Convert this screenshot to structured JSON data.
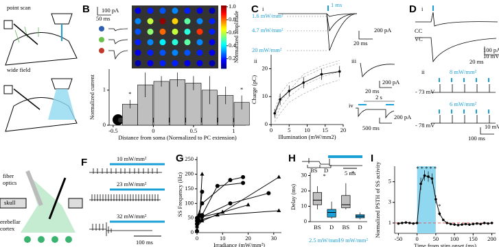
{
  "panels": {
    "A": {
      "point_scan": "point scan",
      "wide_field": "wide field",
      "fiber": "fiber",
      "optics": "optics",
      "skull": "skull",
      "cerebellar": "erebellar",
      "cortex": "cortex"
    },
    "B": {
      "label": "B",
      "scale_current": "100 pA",
      "scale_time": "50 ms",
      "colorbar_label": "Normalized amplitude"
    },
    "C": {
      "label": "C",
      "i": "i",
      "ii": "ii",
      "iii": "iii",
      "iv": "iv",
      "pulse": "1 ms",
      "irr_low": "1.6 mW/mm²",
      "irr_mid": "4.7 mW/mm²",
      "irr_high": "20 mW/mm²",
      "i_current": "200 pA",
      "i_time": "20 ms",
      "iii_current": "200 pA",
      "iii_time": "20 ms",
      "iv_train": "2 s",
      "iv_current": "200 pA",
      "iv_time": "500 ms"
    },
    "D": {
      "label": "D",
      "i": "i",
      "ii": "ii",
      "cc": "CC",
      "vc": "VC",
      "current": "100 pA",
      "voltage": "10 mV",
      "time": "20 ms",
      "irr_top": "8 mW/mm²",
      "vm_top": "- 73 mV",
      "irr_bottom": "6 mW/mm²",
      "vm_bottom": "- 78 mV",
      "ii_voltage": "10 mV",
      "ii_time": "100 ms"
    },
    "F": {
      "label": "F",
      "irr_1": "10 mW/mm²",
      "irr_2": "23 mW/mm²",
      "irr_3": "32 mW/mm²",
      "time": "100 ms"
    },
    "G": {
      "label": "G"
    },
    "H": {
      "label": "H",
      "bs": "BS",
      "d": "D",
      "time": "5 ms"
    },
    "I": {
      "label": "I"
    }
  },
  "chart_data": [
    {
      "type": "bar",
      "y_label": "Normalized current",
      "x_label": "Distance from soma (Normalized to PC extension)",
      "x": [
        -0.29,
        -0.1,
        0.1,
        0.3,
        0.5,
        0.7,
        0.9,
        1.1
      ],
      "values": [
        0.6,
        1.15,
        1.25,
        1.3,
        1.2,
        1.0,
        0.85,
        0.65
      ],
      "errors": [
        0.12,
        0.35,
        0.15,
        0.2,
        0.2,
        0.4,
        0.25,
        0.2
      ],
      "color": "#bfbfbf",
      "xlim": [
        -0.55,
        1.15
      ],
      "ylim": [
        0,
        1.6
      ],
      "xticks": [
        -0.5,
        0,
        0.5,
        1
      ],
      "yticks": [
        0,
        1
      ],
      "annotations": [
        "*",
        "*"
      ]
    },
    {
      "type": "heatmap",
      "zlim": [
        0.05,
        1.02
      ],
      "zticks": [
        {
          "value": 1,
          "label": "1.0"
        },
        0.8,
        0.6,
        0.4,
        0.2
      ],
      "values": [
        [
          0.15,
          0.2,
          0.25,
          0.3,
          0.2,
          0.15,
          0.1
        ],
        [
          0.3,
          0.6,
          1.0,
          0.7,
          0.5,
          0.3,
          0.2
        ],
        [
          0.25,
          0.55,
          0.8,
          0.6,
          0.45,
          0.85,
          0.2
        ],
        [
          0.2,
          0.3,
          0.4,
          0.45,
          0.5,
          0.3,
          0.15
        ],
        [
          0.15,
          0.2,
          0.25,
          0.3,
          0.25,
          0.2,
          0.15
        ],
        [
          0.1,
          0.15,
          0.2,
          0.2,
          0.15,
          0.15,
          0.1
        ]
      ]
    },
    {
      "type": "line",
      "y_label": "Charge (pC)",
      "x_label": "Illumination (mW/mm2)",
      "x": [
        1,
        2.5,
        5,
        9,
        14,
        19
      ],
      "xlim": [
        0,
        20
      ],
      "ylim": [
        0,
        25
      ],
      "xticks": [
        0,
        5,
        10,
        15,
        20
      ],
      "yticks": [
        0,
        10,
        20
      ],
      "series": [
        {
          "color": "#aaaaaa",
          "dashed": true,
          "values": [
            3,
            8,
            12,
            18,
            21,
            23
          ]
        },
        {
          "color": "#aaaaaa",
          "dashed": true,
          "values": [
            2,
            6,
            10,
            14,
            17,
            19
          ]
        },
        {
          "color": "#aaaaaa",
          "dashed": true,
          "values": [
            5,
            11,
            15,
            17,
            20,
            22
          ]
        },
        {
          "color": "#aaaaaa",
          "dashed": true,
          "values": [
            1,
            4,
            8,
            11,
            14,
            16
          ]
        },
        {
          "color": "#000000",
          "values": [
            4,
            9,
            12,
            15,
            18,
            19
          ],
          "errors": [
            1.5,
            2,
            2,
            2,
            2,
            2
          ]
        }
      ]
    },
    {
      "type": "line",
      "y_label": "SS Frequency (Hz)",
      "x_label": "Irradiance (mW/mm²)",
      "xlim": [
        0,
        33
      ],
      "ylim": [
        0,
        260
      ],
      "xticks": [
        0,
        10,
        20,
        30
      ],
      "yticks": [
        0,
        50,
        100,
        150,
        200,
        250
      ],
      "series": [
        {
          "color": "#000000",
          "marker": "circle",
          "x": [
            0,
            2,
            13,
            18
          ],
          "values": [
            50,
            100,
            180,
            190
          ]
        },
        {
          "color": "#000000",
          "marker": "circle",
          "x": [
            0,
            2,
            8,
            18
          ],
          "values": [
            40,
            60,
            160,
            170
          ]
        },
        {
          "color": "#000000",
          "marker": "circle",
          "x": [
            0,
            2,
            13,
            28
          ],
          "values": [
            30,
            55,
            100,
            135
          ]
        },
        {
          "color": "#000000",
          "marker": "triangle",
          "x": [
            0,
            2,
            8,
            32
          ],
          "values": [
            25,
            45,
            60,
            75
          ]
        },
        {
          "color": "#000000",
          "marker": "triangle",
          "x": [
            0,
            2,
            10,
            32
          ],
          "values": [
            20,
            40,
            70,
            190
          ]
        },
        {
          "color": "#000000",
          "marker": "triangle",
          "x": [
            0,
            1,
            2
          ],
          "values": [
            10,
            40,
            200
          ]
        },
        {
          "color": "#000000",
          "marker": "circle",
          "x": [
            0,
            1,
            2
          ],
          "values": [
            5,
            60,
            140
          ]
        },
        {
          "color": "#000000",
          "marker": "triangle",
          "x": [
            0,
            10,
            20
          ],
          "values": [
            50,
            70,
            95
          ]
        }
      ]
    },
    {
      "type": "box",
      "y_label": "Delay (ms)",
      "categories": [
        "BS",
        "D",
        "BS",
        "D"
      ],
      "groups": [
        "2.5 mW/mm²",
        "19 mW/mm²"
      ],
      "annotations": [
        "*",
        "*"
      ],
      "colors": [
        "#bfbfbf",
        "#1a9fd6",
        "#bfbfbf",
        "#1a9fd6"
      ],
      "ylim": [
        0,
        32
      ],
      "yticks": [
        0,
        10,
        20,
        30
      ],
      "whisker_low": [
        8,
        2,
        8,
        1.5
      ],
      "q1": [
        11,
        3,
        9,
        2.5
      ],
      "median": [
        14,
        6,
        11,
        3.5
      ],
      "q3": [
        19,
        8,
        17,
        4.5
      ],
      "whisker_high": [
        23,
        13,
        25,
        6
      ]
    },
    {
      "type": "line",
      "y_label": "Normalized PSTH of SS activity",
      "x_label": "Time from stim onset (ms)",
      "x": [
        -50,
        -40,
        -30,
        -20,
        -10,
        0,
        10,
        20,
        30,
        40,
        50,
        60,
        70,
        80,
        90,
        100,
        110,
        120,
        130,
        140,
        150,
        160,
        170,
        180,
        190,
        200
      ],
      "xlim": [
        -60,
        210
      ],
      "ylim": [
        0,
        6.5
      ],
      "xticks": [
        -50,
        0,
        50,
        100,
        150,
        200
      ],
      "yticks": [
        1,
        3,
        5
      ],
      "stim": [
        0,
        50
      ],
      "stim_color": "#8fd8f0",
      "reference": 1,
      "reference_color": "#e06060",
      "annotations": [
        "* * * * *",
        "*"
      ],
      "series": [
        {
          "color": "#000000",
          "values": [
            0.95,
            1.0,
            1.05,
            1.0,
            0.95,
            1.0,
            4.8,
            5.6,
            5.5,
            5.3,
            3.3,
            1.9,
            1.3,
            1.0,
            0.9,
            0.85,
            0.8,
            0.85,
            0.9,
            0.85,
            0.9,
            0.95,
            0.9,
            1.0,
            0.95,
            1.0
          ],
          "errors": [
            0.1,
            0.1,
            0.1,
            0.1,
            0.1,
            0.1,
            0.6,
            0.5,
            0.5,
            0.5,
            0.4,
            0.2,
            0.1,
            0.1,
            0.1,
            0.1,
            0.1,
            0.1,
            0.1,
            0.1,
            0.1,
            0.1,
            0.1,
            0.1,
            0.1,
            0.1
          ]
        }
      ]
    }
  ]
}
